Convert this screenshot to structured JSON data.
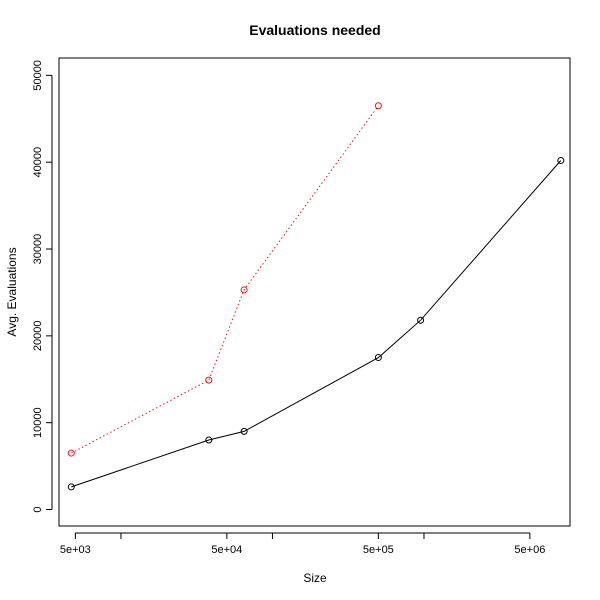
{
  "chart_data": {
    "type": "line",
    "title": "Evaluations needed",
    "xlabel": "Size",
    "ylabel": "Avg. Evaluations",
    "x_scale": "log",
    "xlim": [
      3900,
      9200000
    ],
    "ylim": [
      -1900,
      52000
    ],
    "x_ticks": [
      5000,
      50000,
      500000,
      5000000
    ],
    "x_tick_labels": [
      "5e+03",
      "5e+04",
      "5e+05",
      "5e+06"
    ],
    "x_minor_ticks": [
      10000,
      100000,
      1000000
    ],
    "y_ticks": [
      0,
      10000,
      20000,
      30000,
      40000,
      50000
    ],
    "y_tick_labels": [
      "0",
      "10000",
      "20000",
      "30000",
      "40000",
      "50000"
    ],
    "grid": false,
    "legend": "none",
    "series": [
      {
        "line_style": "solid",
        "color": "#000000",
        "x": [
          4700,
          38000,
          65000,
          500000,
          950000,
          8000000
        ],
        "y": [
          2600,
          8000,
          9000,
          17500,
          21800,
          40200
        ]
      },
      {
        "line_style": "dotted",
        "color": "#e41a1c",
        "x": [
          4700,
          38000,
          65000,
          500000
        ],
        "y": [
          6500,
          14900,
          25300,
          46500
        ]
      }
    ]
  }
}
